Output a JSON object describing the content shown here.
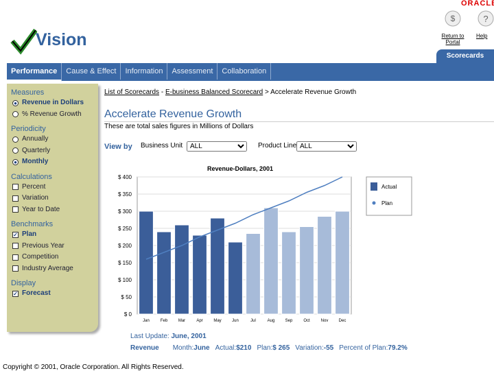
{
  "header": {
    "brand": "ORACLE",
    "app_name": "Vision",
    "links": [
      "Return to Portal",
      "Help"
    ],
    "active_tab": "Scorecards"
  },
  "tabs": [
    "Performance",
    "Cause & Effect",
    "Information",
    "Assessment",
    "Collaboration"
  ],
  "sidebar": [
    {
      "title": "Measures",
      "control": "radio",
      "items": [
        {
          "label": "Revenue in Dollars",
          "checked": true
        },
        {
          "label": "% Revenue Growth",
          "checked": false
        }
      ]
    },
    {
      "title": "Periodicity",
      "control": "radio",
      "items": [
        {
          "label": "Annually",
          "checked": false
        },
        {
          "label": "Quarterly",
          "checked": false
        },
        {
          "label": "Monthly",
          "checked": true
        }
      ]
    },
    {
      "title": "Calculations",
      "control": "checkbox",
      "items": [
        {
          "label": "Percent",
          "checked": false
        },
        {
          "label": "Variation",
          "checked": false
        },
        {
          "label": "Year to Date",
          "checked": false
        }
      ]
    },
    {
      "title": "Benchmarks",
      "control": "checkbox",
      "items": [
        {
          "label": "Plan",
          "checked": true
        },
        {
          "label": "Previous Year",
          "checked": false
        },
        {
          "label": "Competition",
          "checked": false
        },
        {
          "label": "Industry Average",
          "checked": false
        }
      ]
    },
    {
      "title": "Display",
      "control": "checkbox",
      "items": [
        {
          "label": "Forecast",
          "checked": true
        }
      ]
    }
  ],
  "breadcrumb": [
    "List of Scorecards",
    "E-business Balanced Scorecard",
    "Accelerate Revenue Growth"
  ],
  "page": {
    "title": "Accelerate Revenue Growth",
    "subtitle": "These are total sales figures in Millions of Dollars",
    "view_by": "View by",
    "filters": [
      {
        "label": "Business Unit",
        "value": "ALL"
      },
      {
        "label": "Product Line",
        "value": "ALL"
      }
    ]
  },
  "chart_data": {
    "type": "bar",
    "title": "Revenue-Dollars, 2001",
    "categories": [
      "Jan",
      "Feb",
      "Mar",
      "Apr",
      "May",
      "Jun",
      "Jul",
      "Aug",
      "Sep",
      "Oct",
      "Nov",
      "Dec"
    ],
    "series": [
      {
        "name": "Actual",
        "color": "#3b5e99",
        "colors": [
          "#3b5e99",
          "#3b5e99",
          "#3b5e99",
          "#3b5e99",
          "#3b5e99",
          "#3b5e99",
          "#a7bbd9",
          "#a7bbd9",
          "#a7bbd9",
          "#a7bbd9",
          "#a7bbd9",
          "#a7bbd9"
        ],
        "values": [
          300,
          240,
          260,
          230,
          280,
          210,
          235,
          310,
          240,
          255,
          285,
          300
        ]
      },
      {
        "name": "Plan",
        "type": "line",
        "color": "#4f7fc0",
        "values": [
          160,
          180,
          200,
          225,
          245,
          265,
          290,
          310,
          330,
          355,
          375,
          400
        ]
      }
    ],
    "ylim": [
      0,
      400
    ],
    "yticks": [
      {
        "value": 0,
        "label": "$ 0"
      },
      {
        "value": 50,
        "label": "$ 50"
      },
      {
        "value": 100,
        "label": "$ 100"
      },
      {
        "value": 150,
        "label": "$ 150"
      },
      {
        "value": 200,
        "label": "$ 200"
      },
      {
        "value": 250,
        "label": "$ 250"
      },
      {
        "value": 300,
        "label": "$ 300"
      },
      {
        "value": 350,
        "label": "$ 350"
      },
      {
        "value": 400,
        "label": "$ 400"
      }
    ],
    "grid": true,
    "legend": "right"
  },
  "footer": {
    "update_label": "Last Update:",
    "update_value": "June, 2001",
    "measure": "Revenue",
    "stats": [
      {
        "label": "Month:",
        "value": "June"
      },
      {
        "label": "Actual:",
        "value": "$210"
      },
      {
        "label": "Plan:",
        "value": "$ 265"
      },
      {
        "label": "Variation:",
        "value": "-55"
      },
      {
        "label": "Percent of Plan:",
        "value": "79.2%"
      }
    ],
    "copyright": "Copyright © 2001, Oracle Corporation. All Rights Reserved."
  }
}
